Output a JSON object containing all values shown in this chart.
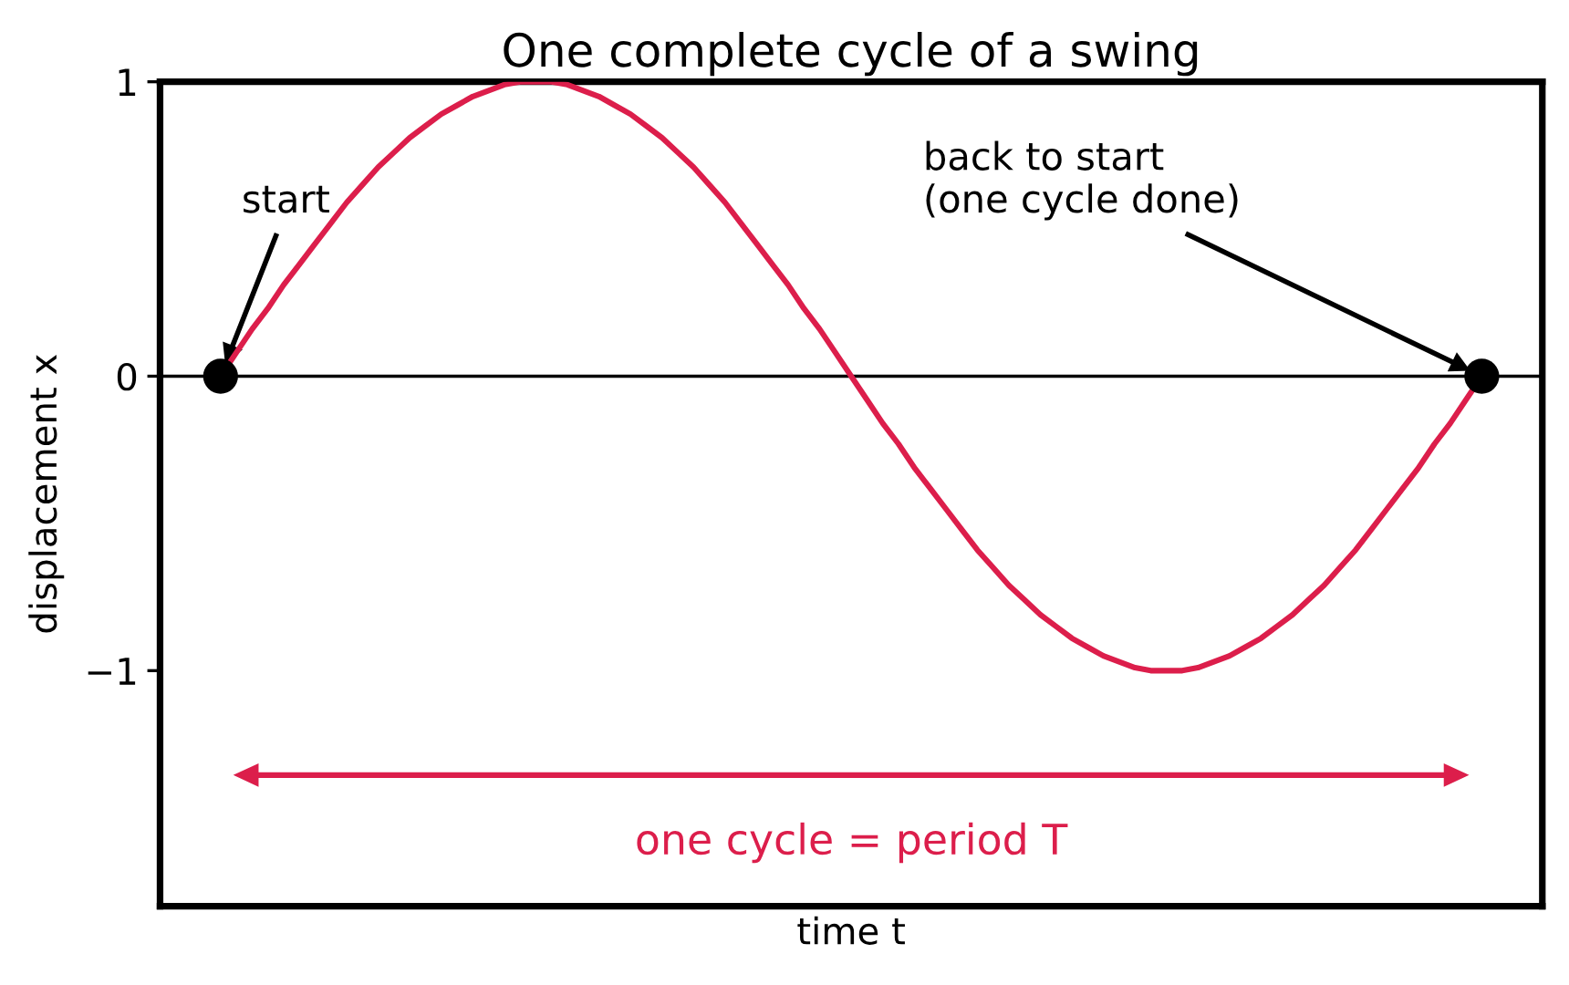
{
  "chart_data": {
    "type": "line",
    "title": "One complete cycle of a swing",
    "xlabel": "time t",
    "ylabel": "displacement x",
    "categories": [
      null,
      null,
      null,
      null,
      null,
      null,
      null,
      null,
      null,
      null,
      null,
      null,
      null,
      null,
      null,
      null,
      null,
      null,
      null,
      null,
      null,
      null,
      null,
      null,
      null,
      null,
      null,
      null,
      null,
      null,
      null,
      null,
      null,
      null,
      null,
      null,
      null,
      null,
      null,
      null,
      null,
      null,
      null,
      null,
      null,
      null,
      null,
      null,
      null,
      null,
      null,
      null,
      null,
      null,
      null,
      null,
      null,
      null,
      null,
      null,
      null,
      null,
      null,
      null,
      null,
      null,
      null,
      null,
      null,
      null,
      null,
      null,
      null,
      null,
      null,
      null,
      null,
      null,
      null,
      null,
      null
    ],
    "series": [
      {
        "color": "#dc1e4b",
        "values": [
          0,
          0.08,
          0.16,
          0.23,
          0.31,
          0.38,
          0.45,
          0.52,
          0.59,
          0.65,
          0.71,
          0.76,
          0.81,
          0.85,
          0.89,
          0.92,
          0.95,
          0.97,
          0.99,
          1,
          1,
          1,
          0.99,
          0.97,
          0.95,
          0.92,
          0.89,
          0.85,
          0.81,
          0.76,
          0.71,
          0.65,
          0.59,
          0.52,
          0.45,
          0.38,
          0.31,
          0.23,
          0.16,
          0.08,
          0,
          -0.08,
          -0.16,
          -0.23,
          -0.31,
          -0.38,
          -0.45,
          -0.52,
          -0.59,
          -0.65,
          -0.71,
          -0.76,
          -0.81,
          -0.85,
          -0.89,
          -0.92,
          -0.95,
          -0.97,
          -0.99,
          -1,
          -1,
          -1,
          -0.99,
          -0.97,
          -0.95,
          -0.92,
          -0.89,
          -0.85,
          -0.81,
          -0.76,
          -0.71,
          -0.65,
          -0.59,
          -0.52,
          -0.45,
          -0.38,
          -0.31,
          -0.23,
          -0.16,
          -0.08,
          0
        ]
      },
      {
        "type": "scatter",
        "color": "#000000",
        "values": [
          0,
          null,
          null,
          null,
          null,
          null,
          null,
          null,
          null,
          null,
          null,
          null,
          null,
          null,
          null,
          null,
          null,
          null,
          null,
          null,
          null,
          null,
          null,
          null,
          null,
          null,
          null,
          null,
          null,
          null,
          null,
          null,
          null,
          null,
          null,
          null,
          null,
          null,
          null,
          null,
          null,
          null,
          null,
          null,
          null,
          null,
          null,
          null,
          null,
          null,
          null,
          null,
          null,
          null,
          null,
          null,
          null,
          null,
          null,
          null,
          null,
          null,
          null,
          null,
          null,
          null,
          null,
          null,
          null,
          null,
          null,
          null,
          null,
          null,
          null,
          null,
          null,
          null,
          null,
          null,
          0
        ]
      }
    ],
    "ylim": [
      -1.8,
      1
    ],
    "yticks": [
      {
        "value": -1,
        "label": "−1"
      },
      0,
      1
    ],
    "ref_lines": [
      {
        "axis": "y",
        "value": 0,
        "color": "#000000"
      }
    ],
    "annotations": [
      "start",
      "back to start\n(one cycle done)",
      "one cycle = period T"
    ],
    "tick_labels": "y"
  }
}
